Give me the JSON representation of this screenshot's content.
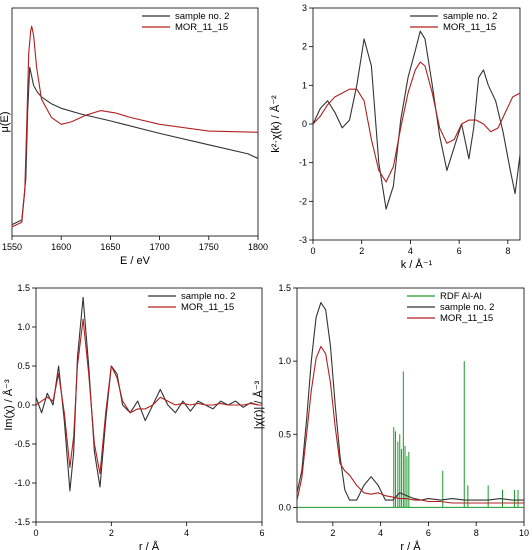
{
  "chart_data": [
    {
      "type": "line",
      "xlabel": "E / eV",
      "ylabel": "μ(E)",
      "xlim": [
        1550,
        1800
      ],
      "ylim": [
        0,
        1
      ],
      "x_ticks": [
        "1550",
        "1600",
        "1650",
        "1700",
        "1750",
        "1800"
      ],
      "y_ticks": [],
      "grid": false,
      "legend_position": "top-right",
      "series": [
        {
          "name": "sample no. 2",
          "color": "#333333",
          "x": [
            1550,
            1560,
            1564,
            1566,
            1568,
            1570,
            1572,
            1576,
            1580,
            1590,
            1600,
            1620,
            1650,
            1700,
            1750,
            1790,
            1800
          ],
          "y": [
            0.05,
            0.07,
            0.25,
            0.55,
            0.74,
            0.7,
            0.66,
            0.63,
            0.61,
            0.58,
            0.56,
            0.535,
            0.505,
            0.45,
            0.4,
            0.36,
            0.34
          ]
        },
        {
          "name": "MOR_11_15",
          "color": "#b02020",
          "x": [
            1550,
            1560,
            1563,
            1565,
            1567,
            1569,
            1570,
            1572,
            1575,
            1580,
            1590,
            1600,
            1610,
            1625,
            1640,
            1655,
            1670,
            1700,
            1750,
            1800
          ],
          "y": [
            0.04,
            0.06,
            0.2,
            0.5,
            0.8,
            0.9,
            0.92,
            0.88,
            0.74,
            0.6,
            0.52,
            0.49,
            0.5,
            0.53,
            0.55,
            0.54,
            0.52,
            0.49,
            0.46,
            0.455
          ]
        }
      ]
    },
    {
      "type": "line",
      "xlabel": "k / Å⁻¹",
      "ylabel": "k²·χ(k) / Å⁻²",
      "xlim": [
        0,
        8.5
      ],
      "ylim": [
        -3,
        3
      ],
      "x_ticks": [
        "0",
        "2",
        "4",
        "6",
        "8"
      ],
      "y_ticks": [
        "-3",
        "-2",
        "-1",
        "0",
        "1",
        "2",
        "3"
      ],
      "grid": false,
      "legend_position": "top-right",
      "series": [
        {
          "name": "sample no. 2",
          "color": "#333333",
          "x": [
            0,
            0.3,
            0.6,
            0.9,
            1.2,
            1.5,
            1.8,
            2.1,
            2.4,
            2.7,
            3.0,
            3.3,
            3.6,
            3.9,
            4.2,
            4.4,
            4.6,
            4.9,
            5.2,
            5.5,
            5.8,
            6.1,
            6.4,
            6.6,
            6.8,
            7.0,
            7.2,
            7.5,
            7.8,
            8.1,
            8.3,
            8.5
          ],
          "y": [
            0.0,
            0.4,
            0.6,
            0.3,
            -0.1,
            0.1,
            1.0,
            2.2,
            1.5,
            -1.0,
            -2.2,
            -1.6,
            0.1,
            1.2,
            1.9,
            2.4,
            2.2,
            1.0,
            -0.3,
            -1.2,
            -0.6,
            0.0,
            -0.9,
            -0.1,
            1.2,
            1.4,
            1.0,
            0.6,
            -0.2,
            -1.2,
            -1.8,
            -0.8
          ]
        },
        {
          "name": "MOR_11_15",
          "color": "#b02020",
          "x": [
            0,
            0.3,
            0.6,
            0.9,
            1.2,
            1.5,
            1.8,
            2.1,
            2.4,
            2.7,
            3.0,
            3.3,
            3.6,
            3.9,
            4.2,
            4.4,
            4.6,
            4.9,
            5.2,
            5.5,
            5.8,
            6.1,
            6.4,
            6.7,
            7.0,
            7.3,
            7.6,
            7.9,
            8.2,
            8.5
          ],
          "y": [
            0.0,
            0.2,
            0.5,
            0.7,
            0.8,
            0.9,
            0.9,
            0.6,
            -0.4,
            -1.2,
            -1.5,
            -1.1,
            -0.1,
            0.8,
            1.4,
            1.6,
            1.5,
            0.8,
            -0.1,
            -0.5,
            -0.4,
            0.0,
            0.1,
            0.1,
            0.0,
            -0.2,
            -0.1,
            0.3,
            0.7,
            0.8
          ]
        }
      ]
    },
    {
      "type": "line",
      "xlabel": "r / Å",
      "ylabel": "Im(χ) / Å⁻³",
      "xlim": [
        0,
        6
      ],
      "ylim": [
        -1.5,
        1.5
      ],
      "x_ticks": [
        "0",
        "2",
        "4",
        "6"
      ],
      "y_ticks": [
        "-1.5",
        "-1.0",
        "-0.5",
        "0.0",
        "0.5",
        "1.0",
        "1.5"
      ],
      "grid": false,
      "legend_position": "top-right",
      "series": [
        {
          "name": "sample no. 2",
          "color": "#333333",
          "x": [
            0,
            0.15,
            0.3,
            0.45,
            0.6,
            0.75,
            0.9,
            1.0,
            1.1,
            1.25,
            1.4,
            1.55,
            1.7,
            1.85,
            2.0,
            2.15,
            2.3,
            2.5,
            2.7,
            2.9,
            3.1,
            3.3,
            3.5,
            3.7,
            3.9,
            4.1,
            4.3,
            4.5,
            4.7,
            4.9,
            5.1,
            5.3,
            5.5,
            5.7,
            5.9,
            6.0
          ],
          "y": [
            0.1,
            -0.1,
            0.15,
            0.0,
            0.5,
            -0.2,
            -1.1,
            -0.6,
            0.6,
            1.38,
            0.5,
            -0.6,
            -1.05,
            -0.2,
            0.5,
            0.4,
            0.0,
            -0.1,
            0.05,
            -0.2,
            0.0,
            0.2,
            0.0,
            -0.1,
            0.05,
            -0.08,
            0.05,
            0.0,
            -0.05,
            0.05,
            0.0,
            0.05,
            -0.03,
            0.03,
            0.0,
            0.0
          ]
        },
        {
          "name": "MOR_11_15",
          "color": "#b02020",
          "x": [
            0,
            0.15,
            0.3,
            0.45,
            0.6,
            0.75,
            0.9,
            1.0,
            1.1,
            1.25,
            1.4,
            1.55,
            1.7,
            1.85,
            2.0,
            2.15,
            2.3,
            2.5,
            2.7,
            2.9,
            3.1,
            3.3,
            3.5,
            3.7,
            3.9,
            4.1,
            4.3,
            4.5,
            4.7,
            4.9,
            5.1,
            5.3,
            5.5,
            5.7,
            5.9,
            6.0
          ],
          "y": [
            0.0,
            0.05,
            0.1,
            0.05,
            0.4,
            -0.1,
            -0.8,
            -0.4,
            0.5,
            1.1,
            0.4,
            -0.5,
            -0.88,
            -0.1,
            0.5,
            0.35,
            0.05,
            -0.1,
            -0.05,
            -0.05,
            0.0,
            0.1,
            0.05,
            0.0,
            0.02,
            0.0,
            0.02,
            0.0,
            0.0,
            0.02,
            0.0,
            0.0,
            0.0,
            0.02,
            0.0,
            0.0
          ]
        }
      ]
    },
    {
      "type": "line",
      "xlabel": "r / Å",
      "ylabel": "|χ(r)| / Å⁻³",
      "xlim": [
        0.5,
        10
      ],
      "ylim": [
        -0.1,
        1.5
      ],
      "x_ticks": [
        "2",
        "4",
        "6",
        "8",
        "10"
      ],
      "y_ticks": [
        "0.0",
        "0.5",
        "1.0",
        "1.5"
      ],
      "grid": false,
      "legend_position": "top-right",
      "series": [
        {
          "name": "RDF Al-Al",
          "color": "#1a9a2a",
          "style": "sticks",
          "baseline": 0,
          "x": [
            4.55,
            4.62,
            4.72,
            4.8,
            4.87,
            4.95,
            5.02,
            5.1,
            5.18,
            6.6,
            7.5,
            7.65,
            8.5,
            9.1,
            9.6,
            9.75
          ],
          "y": [
            0.55,
            0.52,
            0.45,
            0.5,
            0.4,
            0.93,
            0.42,
            0.35,
            0.38,
            0.25,
            1.0,
            0.15,
            0.15,
            0.12,
            0.12,
            0.12
          ]
        },
        {
          "name": "sample no. 2",
          "color": "#333333",
          "x": [
            0.5,
            0.7,
            0.9,
            1.1,
            1.3,
            1.5,
            1.7,
            1.9,
            2.1,
            2.3,
            2.5,
            2.7,
            3.0,
            3.3,
            3.6,
            3.9,
            4.2,
            4.5,
            4.8,
            5.1,
            5.4,
            5.7,
            6.0,
            6.5,
            7.0,
            7.5,
            8.0,
            8.5,
            9.0,
            9.5,
            10.0
          ],
          "y": [
            0.1,
            0.25,
            0.6,
            1.0,
            1.3,
            1.4,
            1.35,
            1.1,
            0.7,
            0.35,
            0.12,
            0.05,
            0.05,
            0.15,
            0.21,
            0.15,
            0.05,
            0.05,
            0.1,
            0.08,
            0.06,
            0.05,
            0.06,
            0.05,
            0.06,
            0.05,
            0.05,
            0.05,
            0.06,
            0.05,
            0.05
          ]
        },
        {
          "name": "MOR_11_15",
          "color": "#b02020",
          "x": [
            0.5,
            0.7,
            0.9,
            1.1,
            1.3,
            1.5,
            1.7,
            1.9,
            2.1,
            2.3,
            2.5,
            2.7,
            3.0,
            3.3,
            3.6,
            3.9,
            4.2,
            4.5,
            4.8,
            5.1,
            5.4,
            5.7,
            6.0,
            6.5,
            7.0,
            7.5,
            8.0,
            8.5,
            9.0,
            9.5,
            10.0
          ],
          "y": [
            0.05,
            0.2,
            0.5,
            0.8,
            1.02,
            1.1,
            1.05,
            0.85,
            0.55,
            0.3,
            0.25,
            0.22,
            0.15,
            0.1,
            0.09,
            0.1,
            0.08,
            0.07,
            0.06,
            0.06,
            0.05,
            0.05,
            0.04,
            0.04,
            0.03,
            0.03,
            0.03,
            0.03,
            0.03,
            0.03,
            0.03
          ]
        }
      ]
    }
  ]
}
